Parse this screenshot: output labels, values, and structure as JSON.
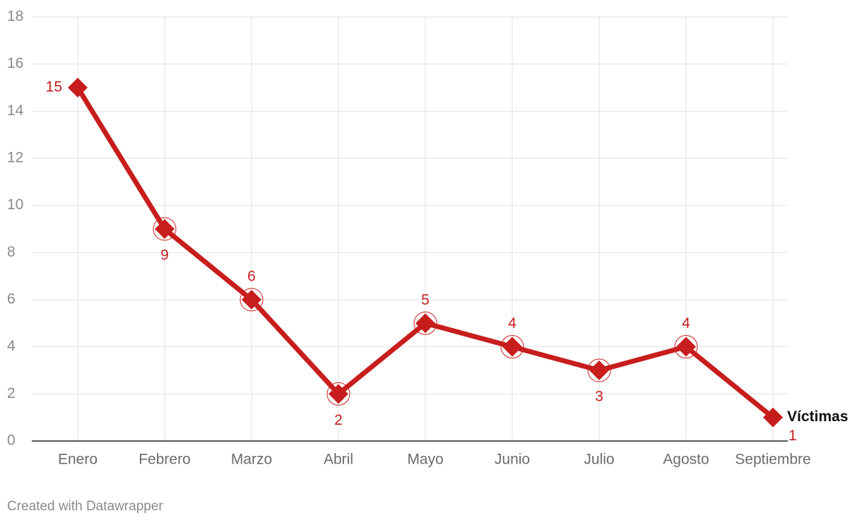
{
  "chart_data": {
    "type": "line",
    "categories": [
      "Enero",
      "Febrero",
      "Marzo",
      "Abril",
      "Mayo",
      "Junio",
      "Julio",
      "Agosto",
      "Septiembre"
    ],
    "series": [
      {
        "name": "Víctimas",
        "color": "#c71e1d",
        "values": [
          15,
          9,
          6,
          2,
          5,
          4,
          3,
          4,
          1
        ]
      }
    ],
    "ylim": [
      0,
      18
    ],
    "yticks": [
      0,
      2,
      4,
      6,
      8,
      10,
      12,
      14,
      16,
      18
    ],
    "grid": true,
    "footer": "Created with Datawrapper"
  }
}
